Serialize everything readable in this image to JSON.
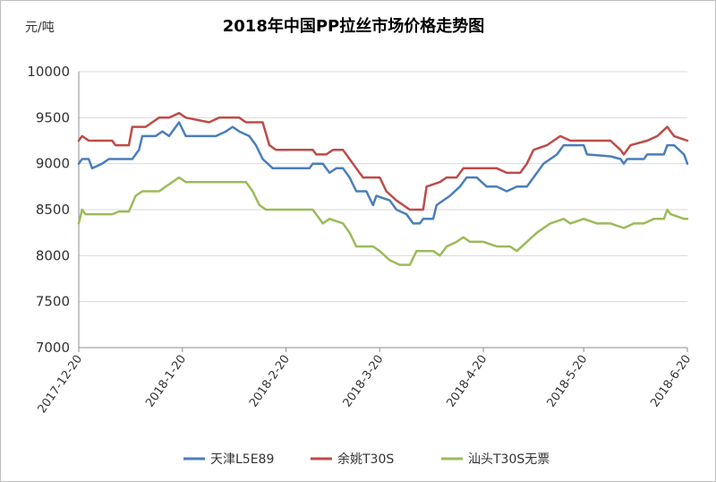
{
  "chart_data": {
    "type": "line",
    "title": "2018年中国PP拉丝市场价格走势图",
    "ylabel": "元/吨",
    "xlabel": "",
    "ylim": [
      7000,
      10000
    ],
    "yticks": [
      7000,
      7500,
      8000,
      8500,
      9000,
      9500,
      10000
    ],
    "xlim": [
      "2017-12-20",
      "2018-6-20"
    ],
    "xticks": [
      "2017-12-20",
      "2018-1-20",
      "2018-2-20",
      "2018-3-20",
      "2018-4-20",
      "2018-5-20",
      "2018-6-20"
    ],
    "grid": "horizontal",
    "legend_position": "bottom",
    "series": [
      {
        "name": "天津L5E89",
        "color": "#4a7ebb",
        "points": [
          [
            "2017-12-20",
            9000
          ],
          [
            "2017-12-21",
            9050
          ],
          [
            "2017-12-23",
            9050
          ],
          [
            "2017-12-24",
            8950
          ],
          [
            "2017-12-27",
            9000
          ],
          [
            "2017-12-29",
            9050
          ],
          [
            "2018-1-5",
            9050
          ],
          [
            "2018-1-7",
            9150
          ],
          [
            "2018-1-8",
            9300
          ],
          [
            "2018-1-12",
            9300
          ],
          [
            "2018-1-14",
            9350
          ],
          [
            "2018-1-16",
            9300
          ],
          [
            "2018-1-19",
            9450
          ],
          [
            "2018-1-21",
            9300
          ],
          [
            "2018-1-30",
            9300
          ],
          [
            "2018-2-2",
            9350
          ],
          [
            "2018-2-4",
            9400
          ],
          [
            "2018-2-6",
            9350
          ],
          [
            "2018-2-9",
            9300
          ],
          [
            "2018-2-11",
            9200
          ],
          [
            "2018-2-13",
            9050
          ],
          [
            "2018-2-16",
            8950
          ],
          [
            "2018-2-27",
            8950
          ],
          [
            "2018-2-28",
            9000
          ],
          [
            "2018-3-3",
            9000
          ],
          [
            "2018-3-5",
            8900
          ],
          [
            "2018-3-7",
            8950
          ],
          [
            "2018-3-9",
            8950
          ],
          [
            "2018-3-11",
            8850
          ],
          [
            "2018-3-13",
            8700
          ],
          [
            "2018-3-16",
            8700
          ],
          [
            "2018-3-18",
            8550
          ],
          [
            "2018-3-19",
            8650
          ],
          [
            "2018-3-23",
            8600
          ],
          [
            "2018-3-25",
            8500
          ],
          [
            "2018-3-28",
            8450
          ],
          [
            "2018-3-30",
            8350
          ],
          [
            "2018-4-1",
            8350
          ],
          [
            "2018-4-2",
            8400
          ],
          [
            "2018-4-5",
            8400
          ],
          [
            "2018-4-6",
            8550
          ],
          [
            "2018-4-10",
            8650
          ],
          [
            "2018-4-13",
            8750
          ],
          [
            "2018-4-15",
            8850
          ],
          [
            "2018-4-18",
            8850
          ],
          [
            "2018-4-21",
            8750
          ],
          [
            "2018-4-24",
            8750
          ],
          [
            "2018-4-27",
            8700
          ],
          [
            "2018-4-30",
            8750
          ],
          [
            "2018-5-3",
            8750
          ],
          [
            "2018-5-5",
            8850
          ],
          [
            "2018-5-8",
            9000
          ],
          [
            "2018-5-12",
            9100
          ],
          [
            "2018-5-14",
            9200
          ],
          [
            "2018-5-20",
            9200
          ],
          [
            "2018-5-21",
            9100
          ],
          [
            "2018-5-28",
            9080
          ],
          [
            "2018-5-31",
            9050
          ],
          [
            "2018-6-1",
            9000
          ],
          [
            "2018-6-2",
            9050
          ],
          [
            "2018-6-7",
            9050
          ],
          [
            "2018-6-8",
            9100
          ],
          [
            "2018-6-13",
            9100
          ],
          [
            "2018-6-14",
            9200
          ],
          [
            "2018-6-16",
            9200
          ],
          [
            "2018-6-19",
            9100
          ],
          [
            "2018-6-20",
            9000
          ]
        ]
      },
      {
        "name": "余姚T30S",
        "color": "#be4b48",
        "points": [
          [
            "2017-12-20",
            9250
          ],
          [
            "2017-12-21",
            9300
          ],
          [
            "2017-12-23",
            9250
          ],
          [
            "2017-12-30",
            9250
          ],
          [
            "2017-12-31",
            9200
          ],
          [
            "2018-1-4",
            9200
          ],
          [
            "2018-1-5",
            9400
          ],
          [
            "2018-1-9",
            9400
          ],
          [
            "2018-1-11",
            9450
          ],
          [
            "2018-1-13",
            9500
          ],
          [
            "2018-1-16",
            9500
          ],
          [
            "2018-1-19",
            9550
          ],
          [
            "2018-1-21",
            9500
          ],
          [
            "2018-1-28",
            9450
          ],
          [
            "2018-1-31",
            9500
          ],
          [
            "2018-2-6",
            9500
          ],
          [
            "2018-2-8",
            9450
          ],
          [
            "2018-2-13",
            9450
          ],
          [
            "2018-2-15",
            9200
          ],
          [
            "2018-2-17",
            9150
          ],
          [
            "2018-2-28",
            9150
          ],
          [
            "2018-3-1",
            9100
          ],
          [
            "2018-3-4",
            9100
          ],
          [
            "2018-3-6",
            9150
          ],
          [
            "2018-3-9",
            9150
          ],
          [
            "2018-3-11",
            9050
          ],
          [
            "2018-3-13",
            8950
          ],
          [
            "2018-3-15",
            8850
          ],
          [
            "2018-3-20",
            8850
          ],
          [
            "2018-3-22",
            8700
          ],
          [
            "2018-3-25",
            8600
          ],
          [
            "2018-3-27",
            8550
          ],
          [
            "2018-3-29",
            8500
          ],
          [
            "2018-4-2",
            8500
          ],
          [
            "2018-4-3",
            8750
          ],
          [
            "2018-4-7",
            8800
          ],
          [
            "2018-4-9",
            8850
          ],
          [
            "2018-4-12",
            8850
          ],
          [
            "2018-4-14",
            8950
          ],
          [
            "2018-4-20",
            8950
          ],
          [
            "2018-4-24",
            8950
          ],
          [
            "2018-4-27",
            8900
          ],
          [
            "2018-5-1",
            8900
          ],
          [
            "2018-5-3",
            9000
          ],
          [
            "2018-5-5",
            9150
          ],
          [
            "2018-5-9",
            9200
          ],
          [
            "2018-5-13",
            9300
          ],
          [
            "2018-5-16",
            9250
          ],
          [
            "2018-5-20",
            9250
          ],
          [
            "2018-5-28",
            9250
          ],
          [
            "2018-5-31",
            9150
          ],
          [
            "2018-6-1",
            9100
          ],
          [
            "2018-6-3",
            9200
          ],
          [
            "2018-6-8",
            9250
          ],
          [
            "2018-6-11",
            9300
          ],
          [
            "2018-6-14",
            9400
          ],
          [
            "2018-6-16",
            9300
          ],
          [
            "2018-6-20",
            9250
          ]
        ]
      },
      {
        "name": "汕头T30S无票",
        "color": "#9bbb59",
        "points": [
          [
            "2017-12-20",
            8350
          ],
          [
            "2017-12-21",
            8500
          ],
          [
            "2017-12-22",
            8450
          ],
          [
            "2017-12-30",
            8450
          ],
          [
            "2018-1-1",
            8480
          ],
          [
            "2018-1-4",
            8480
          ],
          [
            "2018-1-6",
            8650
          ],
          [
            "2018-1-8",
            8700
          ],
          [
            "2018-1-13",
            8700
          ],
          [
            "2018-1-17",
            8800
          ],
          [
            "2018-1-19",
            8850
          ],
          [
            "2018-1-21",
            8800
          ],
          [
            "2018-2-8",
            8800
          ],
          [
            "2018-2-10",
            8700
          ],
          [
            "2018-2-12",
            8550
          ],
          [
            "2018-2-14",
            8500
          ],
          [
            "2018-2-28",
            8500
          ],
          [
            "2018-3-1",
            8450
          ],
          [
            "2018-3-3",
            8350
          ],
          [
            "2018-3-5",
            8400
          ],
          [
            "2018-3-9",
            8350
          ],
          [
            "2018-3-11",
            8250
          ],
          [
            "2018-3-13",
            8100
          ],
          [
            "2018-3-18",
            8100
          ],
          [
            "2018-3-20",
            8050
          ],
          [
            "2018-3-23",
            7950
          ],
          [
            "2018-3-26",
            7900
          ],
          [
            "2018-3-29",
            7900
          ],
          [
            "2018-3-31",
            8050
          ],
          [
            "2018-4-2",
            8050
          ],
          [
            "2018-4-5",
            8050
          ],
          [
            "2018-4-7",
            8000
          ],
          [
            "2018-4-9",
            8100
          ],
          [
            "2018-4-12",
            8150
          ],
          [
            "2018-4-14",
            8200
          ],
          [
            "2018-4-16",
            8150
          ],
          [
            "2018-4-20",
            8150
          ],
          [
            "2018-4-24",
            8100
          ],
          [
            "2018-4-28",
            8100
          ],
          [
            "2018-4-30",
            8050
          ],
          [
            "2018-5-3",
            8150
          ],
          [
            "2018-5-6",
            8250
          ],
          [
            "2018-5-10",
            8350
          ],
          [
            "2018-5-14",
            8400
          ],
          [
            "2018-5-16",
            8350
          ],
          [
            "2018-5-20",
            8400
          ],
          [
            "2018-5-24",
            8350
          ],
          [
            "2018-5-28",
            8350
          ],
          [
            "2018-6-1",
            8300
          ],
          [
            "2018-6-4",
            8350
          ],
          [
            "2018-6-7",
            8350
          ],
          [
            "2018-6-10",
            8400
          ],
          [
            "2018-6-13",
            8400
          ],
          [
            "2018-6-14",
            8500
          ],
          [
            "2018-6-15",
            8450
          ],
          [
            "2018-6-19",
            8400
          ],
          [
            "2018-6-20",
            8400
          ]
        ]
      }
    ]
  }
}
